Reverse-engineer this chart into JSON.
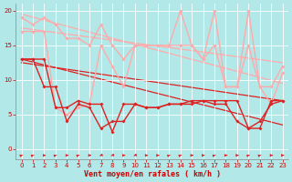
{
  "background_color": "#b2e8e8",
  "grid_color": "#c8e8e8",
  "xlabel": "Vent moyen/en rafales ( km/h )",
  "xlabel_color": "#cc0000",
  "tick_color": "#cc0000",
  "ylim": [
    -1.5,
    21
  ],
  "xlim": [
    -0.5,
    23.5
  ],
  "yticks": [
    0,
    5,
    10,
    15,
    20
  ],
  "xticks": [
    0,
    1,
    2,
    3,
    4,
    5,
    6,
    7,
    8,
    9,
    10,
    11,
    12,
    13,
    14,
    15,
    16,
    17,
    18,
    19,
    20,
    21,
    22,
    23
  ],
  "line_pink1": {
    "x": [
      0,
      1,
      2,
      3,
      4,
      5,
      6,
      7,
      8,
      9,
      10,
      11,
      12,
      13,
      14,
      15,
      16,
      17,
      18,
      19,
      20,
      21,
      22,
      23
    ],
    "y": [
      19,
      18,
      19,
      18,
      16,
      16,
      15,
      18,
      15,
      13,
      15,
      15,
      15,
      15,
      15,
      15,
      13,
      15,
      9,
      9,
      15,
      9,
      9,
      12
    ],
    "color": "#ffaaaa",
    "marker": "D",
    "markersize": 2,
    "linewidth": 1.0
  },
  "line_pink2": {
    "x": [
      0,
      1,
      2,
      3,
      4,
      5,
      6,
      7,
      8,
      9,
      10,
      11,
      12,
      13,
      14,
      15,
      16,
      17,
      18,
      19,
      20,
      21,
      22,
      23
    ],
    "y": [
      17,
      17,
      17,
      6,
      5,
      6,
      6.5,
      15,
      12,
      9,
      15,
      15,
      15,
      15,
      20,
      15,
      13,
      20,
      9,
      9,
      20,
      9,
      6.5,
      11
    ],
    "color": "#ffaaaa",
    "marker": "D",
    "markersize": 2,
    "linewidth": 1.0
  },
  "line_red1": {
    "x": [
      0,
      1,
      2,
      3,
      4,
      5,
      6,
      7,
      8,
      9,
      10,
      11,
      12,
      13,
      14,
      15,
      16,
      17,
      18,
      19,
      20,
      21,
      22,
      23
    ],
    "y": [
      13,
      13,
      9,
      9,
      4,
      6.5,
      6,
      3,
      4,
      4,
      6.5,
      6,
      6,
      6.5,
      6.5,
      6.5,
      7,
      7,
      7,
      7,
      3,
      4,
      6.5,
      7
    ],
    "color": "#dd2222",
    "marker": "D",
    "markersize": 2,
    "linewidth": 1.0
  },
  "line_red2": {
    "x": [
      0,
      1,
      2,
      3,
      4,
      5,
      6,
      7,
      8,
      9,
      10,
      11,
      12,
      13,
      14,
      15,
      16,
      17,
      18,
      19,
      20,
      21,
      22,
      23
    ],
    "y": [
      13,
      13,
      13,
      6,
      6,
      7,
      6.5,
      6.5,
      2.5,
      6.5,
      6.5,
      6,
      6,
      6.5,
      6.5,
      7,
      7,
      6.5,
      6.5,
      4,
      3,
      3,
      7,
      7
    ],
    "color": "#dd2222",
    "marker": "D",
    "markersize": 2,
    "linewidth": 1.0
  },
  "trend_pink1": {
    "x": [
      0,
      23
    ],
    "y": [
      19.5,
      9.5
    ],
    "color": "#ffaaaa",
    "linewidth": 0.9
  },
  "trend_pink2": {
    "x": [
      0,
      23
    ],
    "y": [
      17.5,
      12.5
    ],
    "color": "#ffaaaa",
    "linewidth": 0.9
  },
  "trend_red1": {
    "x": [
      0,
      23
    ],
    "y": [
      13.0,
      3.5
    ],
    "color": "#dd2222",
    "linewidth": 0.9
  },
  "trend_red2": {
    "x": [
      0,
      23
    ],
    "y": [
      12.5,
      7.0
    ],
    "color": "#dd2222",
    "linewidth": 0.9
  },
  "arrow_angles": [
    45,
    45,
    0,
    45,
    0,
    45,
    0,
    225,
    225,
    0,
    225,
    0,
    0,
    45,
    45,
    0,
    0,
    45,
    0,
    0,
    45,
    45,
    0,
    0
  ],
  "figsize": [
    3.2,
    2.0
  ],
  "dpi": 100
}
